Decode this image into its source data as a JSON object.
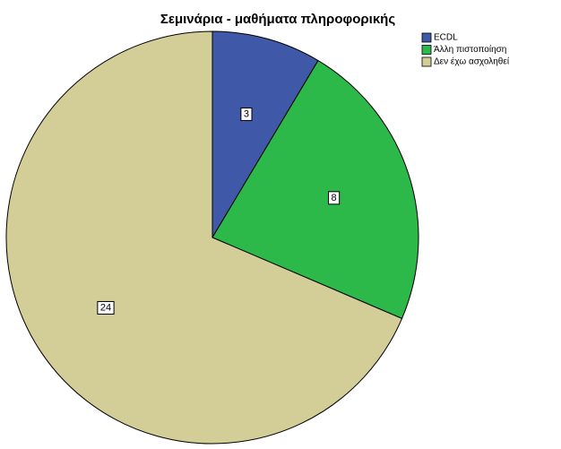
{
  "chart_data": {
    "type": "pie",
    "title": "Σεμινάρια - μαθήματα πληροφορικής",
    "categories": [
      "ECDL",
      "Άλλη πιστοποίηση",
      "Δεν έχω ασχοληθεί"
    ],
    "values": [
      3,
      8,
      24
    ],
    "colors": [
      "#3f58a8",
      "#2db84a",
      "#d3ce97"
    ],
    "legend": "top-right"
  }
}
